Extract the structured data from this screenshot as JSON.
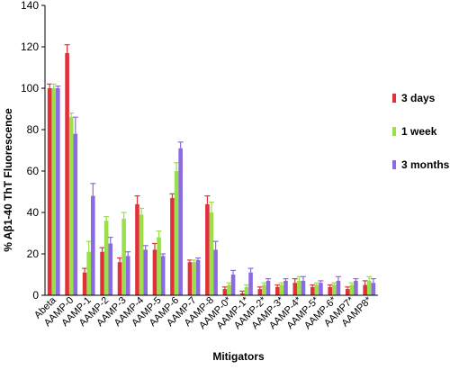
{
  "chart_data": {
    "type": "bar",
    "title": "",
    "xlabel": "Mitigators",
    "ylabel": "% Aβ1-40 ThT Fluorescence",
    "ylim": [
      0,
      140
    ],
    "yticks": [
      0,
      20,
      40,
      60,
      80,
      100,
      120,
      140
    ],
    "grid": false,
    "legend_position": "right",
    "categories": [
      "Abeta",
      "AAMP-0",
      "AAMP-1",
      "AAMP-2",
      "AAMP-3",
      "AAMP-4",
      "AAMP-5",
      "AAMP-6",
      "AAMP-7",
      "AAMP-8",
      "AAMP-0*",
      "AAMP-1*",
      "AAMP-2*",
      "AAMP-3*",
      "AAMP-4*",
      "AAMP-5*",
      "AAMP-6*",
      "AAMP7*",
      "AAMP8*"
    ],
    "series": [
      {
        "name": "3 days",
        "color": "#e0303a",
        "values": [
          100,
          117,
          11,
          21,
          16,
          44,
          22,
          47,
          16,
          44,
          3,
          1,
          3,
          4,
          6,
          4,
          4,
          3,
          5
        ],
        "errors": [
          2,
          4,
          2,
          2,
          2,
          4,
          3,
          2,
          1,
          4,
          1,
          1,
          1,
          1,
          2,
          1,
          1,
          1,
          2
        ]
      },
      {
        "name": "1 week",
        "color": "#99e04a",
        "values": [
          100,
          86,
          21,
          36,
          37,
          39,
          28,
          60,
          16,
          40,
          5,
          4,
          5,
          5,
          7,
          5,
          5,
          5,
          7
        ],
        "errors": [
          2,
          2,
          5,
          2,
          3,
          3,
          3,
          4,
          1,
          5,
          1,
          1,
          1,
          1,
          2,
          1,
          1,
          1,
          2
        ]
      },
      {
        "name": "3 months",
        "color": "#8c6be0",
        "values": [
          100,
          78,
          48,
          25,
          19,
          22,
          19,
          71,
          17,
          22,
          10,
          11,
          7,
          7,
          7,
          6,
          7,
          7,
          6
        ],
        "errors": [
          1,
          8,
          6,
          3,
          2,
          2,
          1,
          3,
          1,
          4,
          2,
          2,
          1,
          1,
          2,
          1,
          2,
          1,
          2
        ]
      }
    ]
  }
}
